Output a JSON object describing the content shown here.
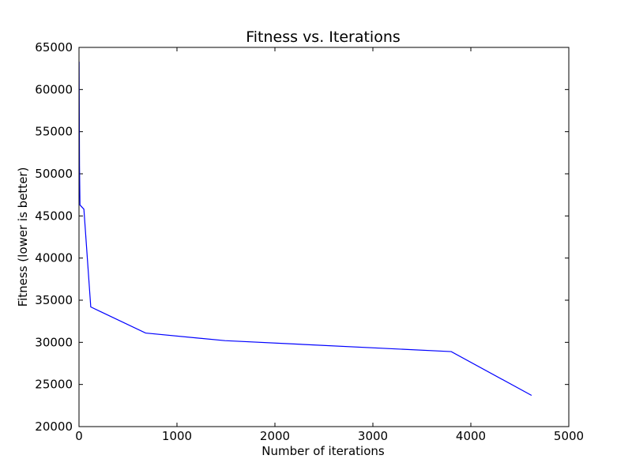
{
  "chart_data": {
    "type": "line",
    "title": "Fitness vs. Iterations",
    "xlabel": "Number of iterations",
    "ylabel": "Fitness (lower is better)",
    "xlim": [
      0,
      5000
    ],
    "ylim": [
      20000,
      65000
    ],
    "xticks": [
      0,
      1000,
      2000,
      3000,
      4000,
      5000
    ],
    "yticks": [
      20000,
      25000,
      30000,
      35000,
      40000,
      45000,
      50000,
      55000,
      60000,
      65000
    ],
    "grid": false,
    "series": [
      {
        "color": "#0000ff",
        "x": [
          1,
          5,
          10,
          50,
          120,
          680,
          1490,
          3800,
          4620
        ],
        "y": [
          63300,
          51000,
          46300,
          45800,
          34200,
          31100,
          30200,
          28900,
          23700
        ]
      }
    ]
  }
}
